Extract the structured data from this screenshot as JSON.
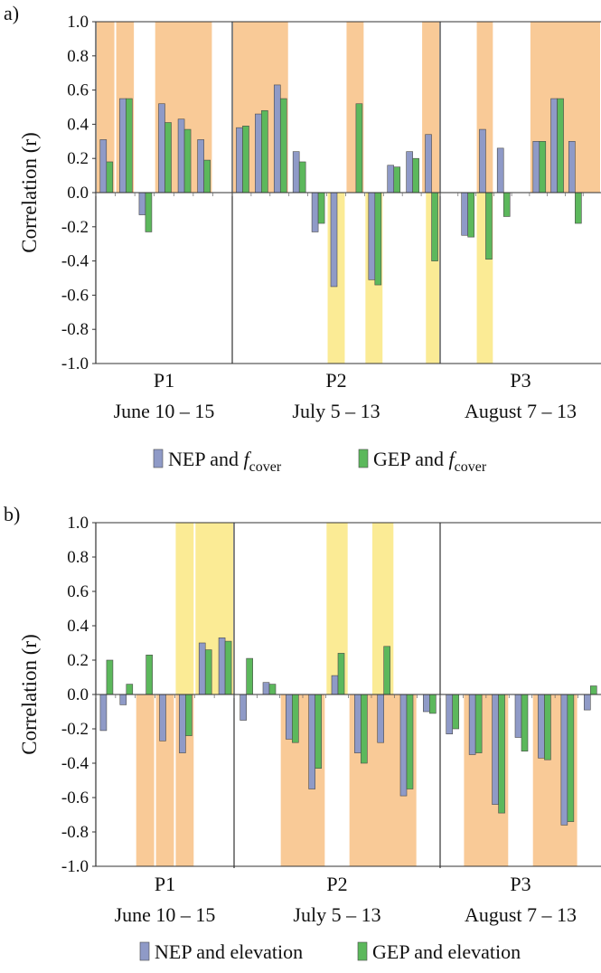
{
  "colors": {
    "nep": "#8f9ac7",
    "gep": "#5cb85c",
    "highlight_orange": "#f8c48c",
    "highlight_yellow": "#fbe98a",
    "axis": "#333333"
  },
  "chart_data": [
    {
      "type": "bar",
      "panel_label": "a)",
      "ylabel": "Correlation (r)",
      "ylim": [
        -1.0,
        1.0
      ],
      "yticks": [
        "1.0",
        "0.8",
        "0.6",
        "0.4",
        "0.2",
        "0.0",
        "-0.2",
        "-0.4",
        "-0.6",
        "-0.8",
        "-1.0"
      ],
      "grid": false,
      "legend_position": "bottom",
      "legend": {
        "nep_main": "NEP and ",
        "nep_var": "f",
        "nep_sub": "cover",
        "gep_main": "GEP and ",
        "gep_var": "f",
        "gep_sub": "cover"
      },
      "periods": [
        {
          "name": "P1",
          "dates": "June 10 – 15",
          "slots": 7
        },
        {
          "name": "P2",
          "dates": "July 5 – 13",
          "slots": 11
        },
        {
          "name": "P3",
          "dates": "August 7 – 13",
          "slots": 9
        }
      ],
      "series": [
        {
          "key": "nep",
          "values": [
            0.31,
            0.55,
            -0.13,
            0.52,
            0.43,
            0.31,
            null,
            0.38,
            0.46,
            0.63,
            0.24,
            -0.23,
            -0.55,
            null,
            -0.51,
            0.16,
            0.24,
            0.34,
            null,
            -0.25,
            0.37,
            0.26,
            null,
            0.3,
            0.55,
            0.3,
            null
          ]
        },
        {
          "key": "gep",
          "values": [
            0.18,
            0.55,
            -0.23,
            0.41,
            0.37,
            0.19,
            null,
            0.39,
            0.48,
            0.55,
            0.18,
            -0.18,
            null,
            0.52,
            -0.54,
            0.15,
            0.2,
            -0.4,
            null,
            -0.26,
            -0.39,
            -0.14,
            null,
            0.3,
            0.55,
            -0.18,
            null
          ]
        }
      ],
      "highlights": [
        {
          "from": 0,
          "to": 1,
          "sign": "positive"
        },
        {
          "from": 1,
          "to": 2,
          "sign": "positive"
        },
        {
          "from": 3,
          "to": 6,
          "sign": "positive"
        },
        {
          "from": 7,
          "to": 10,
          "sign": "positive"
        },
        {
          "from": 12,
          "to": 13,
          "sign": "negative"
        },
        {
          "from": 13,
          "to": 14,
          "sign": "positive"
        },
        {
          "from": 14,
          "to": 15,
          "sign": "negative"
        },
        {
          "from": 17,
          "to": 18,
          "sign": "positive"
        },
        {
          "from": 17.2,
          "to": 18,
          "sign": "negative"
        },
        {
          "from": 20,
          "to": 21,
          "sign": "positive"
        },
        {
          "from": 20,
          "to": 21,
          "sign": "negative"
        },
        {
          "from": 23,
          "to": 27,
          "sign": "positive"
        }
      ]
    },
    {
      "type": "bar",
      "panel_label": "b)",
      "ylabel": "Correlation (r)",
      "ylim": [
        -1.0,
        1.0
      ],
      "yticks": [
        "1.0",
        "0.8",
        "0.6",
        "0.4",
        "0.2",
        "0.0",
        "-0.2",
        "-0.4",
        "-0.6",
        "-0.8",
        "-1.0"
      ],
      "grid": false,
      "legend_position": "bottom",
      "legend": {
        "nep_main": "NEP and elevation",
        "nep_var": "",
        "nep_sub": "",
        "gep_main": "GEP and elevation",
        "gep_var": "",
        "gep_sub": ""
      },
      "periods": [
        {
          "name": "P1",
          "dates": "June 10 – 15",
          "slots": 7
        },
        {
          "name": "P2",
          "dates": "July 5 – 13",
          "slots": 9
        },
        {
          "name": "P3",
          "dates": "August 7 – 13",
          "slots": 7
        }
      ],
      "series": [
        {
          "key": "nep",
          "values": [
            -0.21,
            -0.06,
            0.0,
            -0.27,
            -0.34,
            0.3,
            0.33,
            -0.15,
            0.07,
            -0.26,
            -0.55,
            0.11,
            -0.34,
            -0.28,
            -0.59,
            -0.1,
            -0.23,
            -0.35,
            -0.64,
            -0.25,
            -0.37,
            -0.76,
            -0.09
          ]
        },
        {
          "key": "gep",
          "values": [
            0.2,
            0.06,
            0.23,
            null,
            -0.24,
            0.26,
            0.31,
            0.21,
            0.06,
            -0.28,
            -0.43,
            0.24,
            -0.4,
            0.28,
            -0.55,
            -0.11,
            -0.2,
            -0.34,
            -0.69,
            -0.33,
            -0.38,
            -0.74,
            0.05
          ]
        }
      ],
      "highlights": [
        {
          "from": 2,
          "to": 3,
          "sign": "negative"
        },
        {
          "from": 3,
          "to": 4,
          "sign": "negative"
        },
        {
          "from": 4,
          "to": 5,
          "sign": "negative"
        },
        {
          "from": 4,
          "to": 5,
          "sign": "positive"
        },
        {
          "from": 5,
          "to": 7,
          "sign": "positive"
        },
        {
          "from": 9,
          "to": 11,
          "sign": "negative"
        },
        {
          "from": 11,
          "to": 12,
          "sign": "positive"
        },
        {
          "from": 12,
          "to": 15,
          "sign": "negative"
        },
        {
          "from": 13,
          "to": 14,
          "sign": "positive"
        },
        {
          "from": 17,
          "to": 19,
          "sign": "negative"
        },
        {
          "from": 20,
          "to": 22,
          "sign": "negative"
        }
      ]
    }
  ]
}
